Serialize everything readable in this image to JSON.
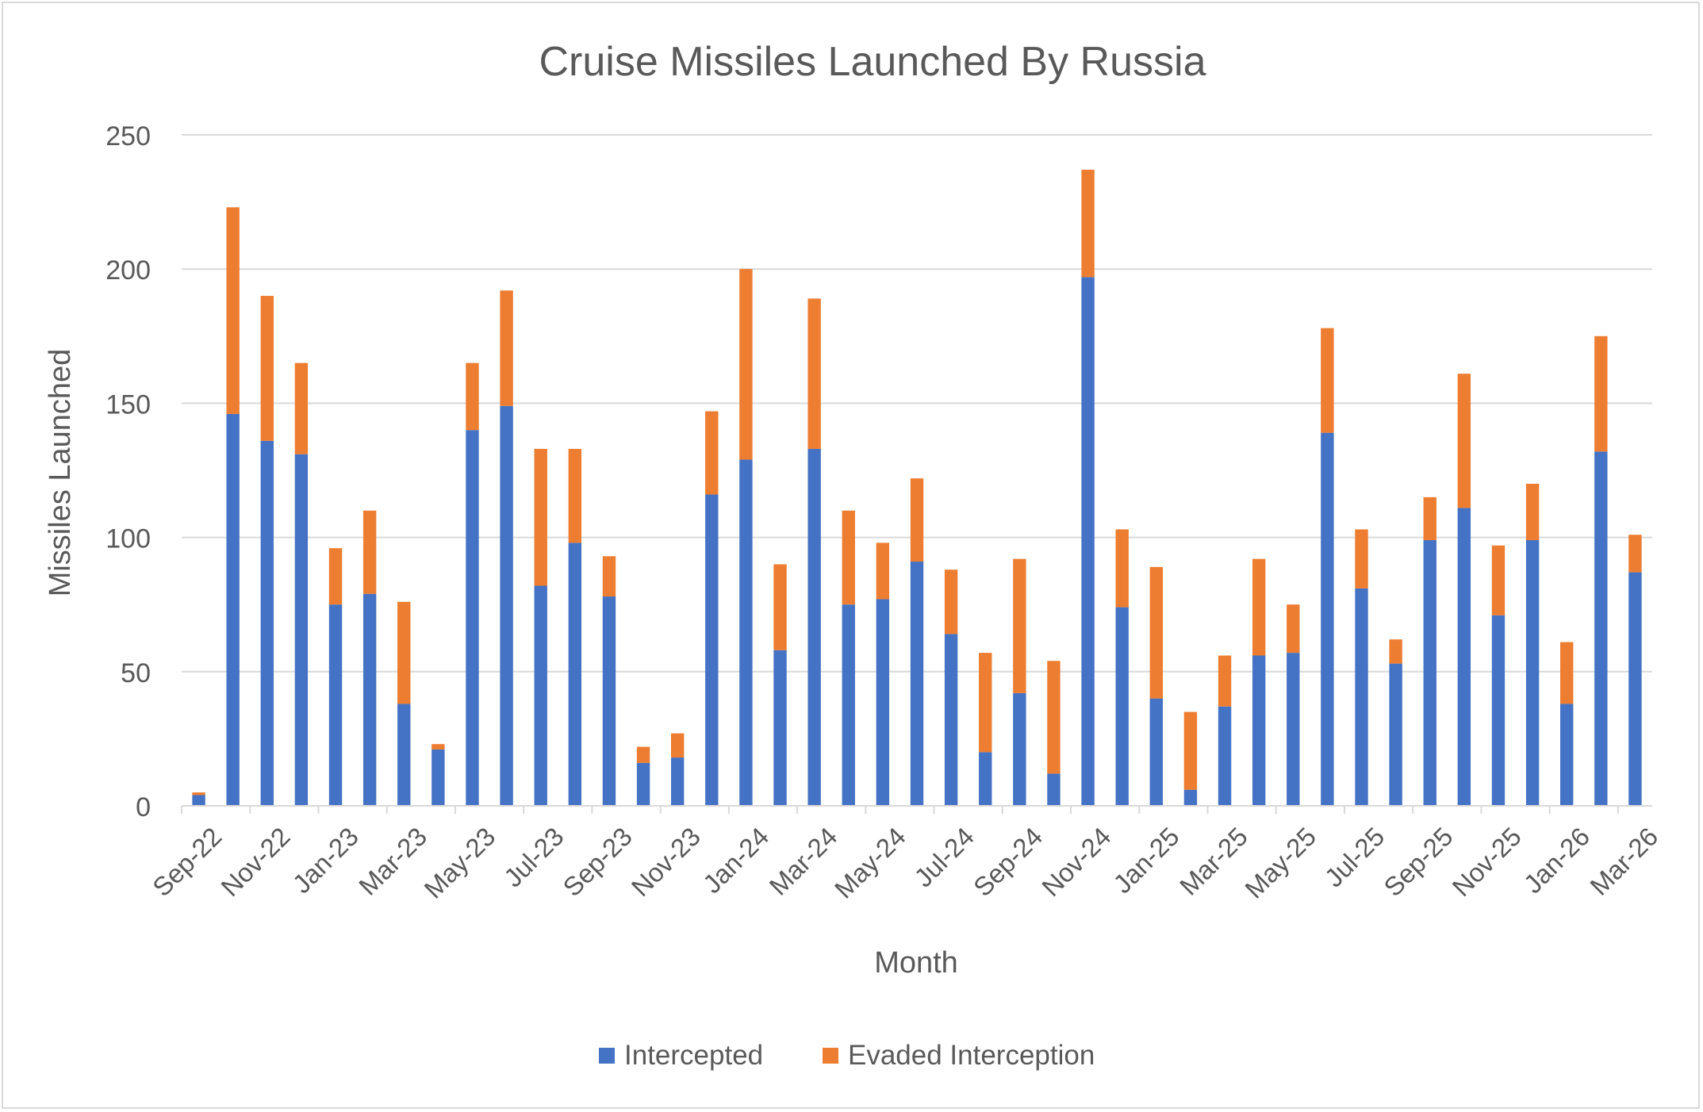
{
  "chart_data": {
    "type": "bar",
    "stacked": true,
    "title": "Cruise Missiles Launched By Russia",
    "xlabel": "Month",
    "ylabel": "Missiles Launched",
    "ylim": [
      0,
      250
    ],
    "yticks": [
      0,
      50,
      100,
      150,
      200,
      250
    ],
    "grid": true,
    "legend_position": "bottom",
    "categories": [
      "Sep-22",
      "Oct-22",
      "Nov-22",
      "Dec-22",
      "Jan-23",
      "Feb-23",
      "Mar-23",
      "Apr-23",
      "May-23",
      "Jun-23",
      "Jul-23",
      "Aug-23",
      "Sep-23",
      "Oct-23",
      "Nov-23",
      "Dec-23",
      "Jan-24",
      "Feb-24",
      "Mar-24",
      "Apr-24",
      "May-24",
      "Jun-24",
      "Jul-24",
      "Aug-24",
      "Sep-24",
      "Oct-24",
      "Nov-24",
      "Dec-24",
      "Jan-25",
      "Feb-25",
      "Mar-25",
      "Apr-25",
      "May-25",
      "Jun-25",
      "Jul-25",
      "Aug-25",
      "Sep-25",
      "Oct-25",
      "Nov-25",
      "Dec-25",
      "Jan-26",
      "Feb-26",
      "Mar-26"
    ],
    "tick_labels": [
      "Sep-22",
      "Nov-22",
      "Jan-23",
      "Mar-23",
      "May-23",
      "Jul-23",
      "Sep-23",
      "Nov-23",
      "Jan-24",
      "Mar-24",
      "May-24",
      "Jul-24",
      "Sep-24",
      "Nov-24",
      "Jan-25",
      "Mar-25",
      "May-25",
      "Jul-25",
      "Sep-25",
      "Nov-25",
      "Jan-26",
      "Mar-26"
    ],
    "series": [
      {
        "name": "Intercepted",
        "color": "#4472c4",
        "values": [
          4,
          146,
          136,
          131,
          75,
          79,
          38,
          21,
          140,
          149,
          82,
          98,
          78,
          16,
          18,
          116,
          129,
          58,
          133,
          75,
          77,
          91,
          64,
          20,
          42,
          12,
          197,
          74,
          40,
          6,
          37,
          56,
          57,
          139,
          81,
          53,
          99,
          111,
          71,
          99,
          38,
          132,
          87
        ]
      },
      {
        "name": "Evaded Interception",
        "color": "#ed7d31",
        "values": [
          1,
          77,
          54,
          34,
          21,
          31,
          38,
          2,
          25,
          43,
          51,
          35,
          15,
          6,
          9,
          31,
          71,
          32,
          56,
          35,
          21,
          31,
          24,
          37,
          50,
          42,
          40,
          29,
          49,
          29,
          19,
          36,
          18,
          39,
          22,
          9,
          16,
          50,
          26,
          21,
          23,
          43,
          14
        ]
      }
    ]
  }
}
